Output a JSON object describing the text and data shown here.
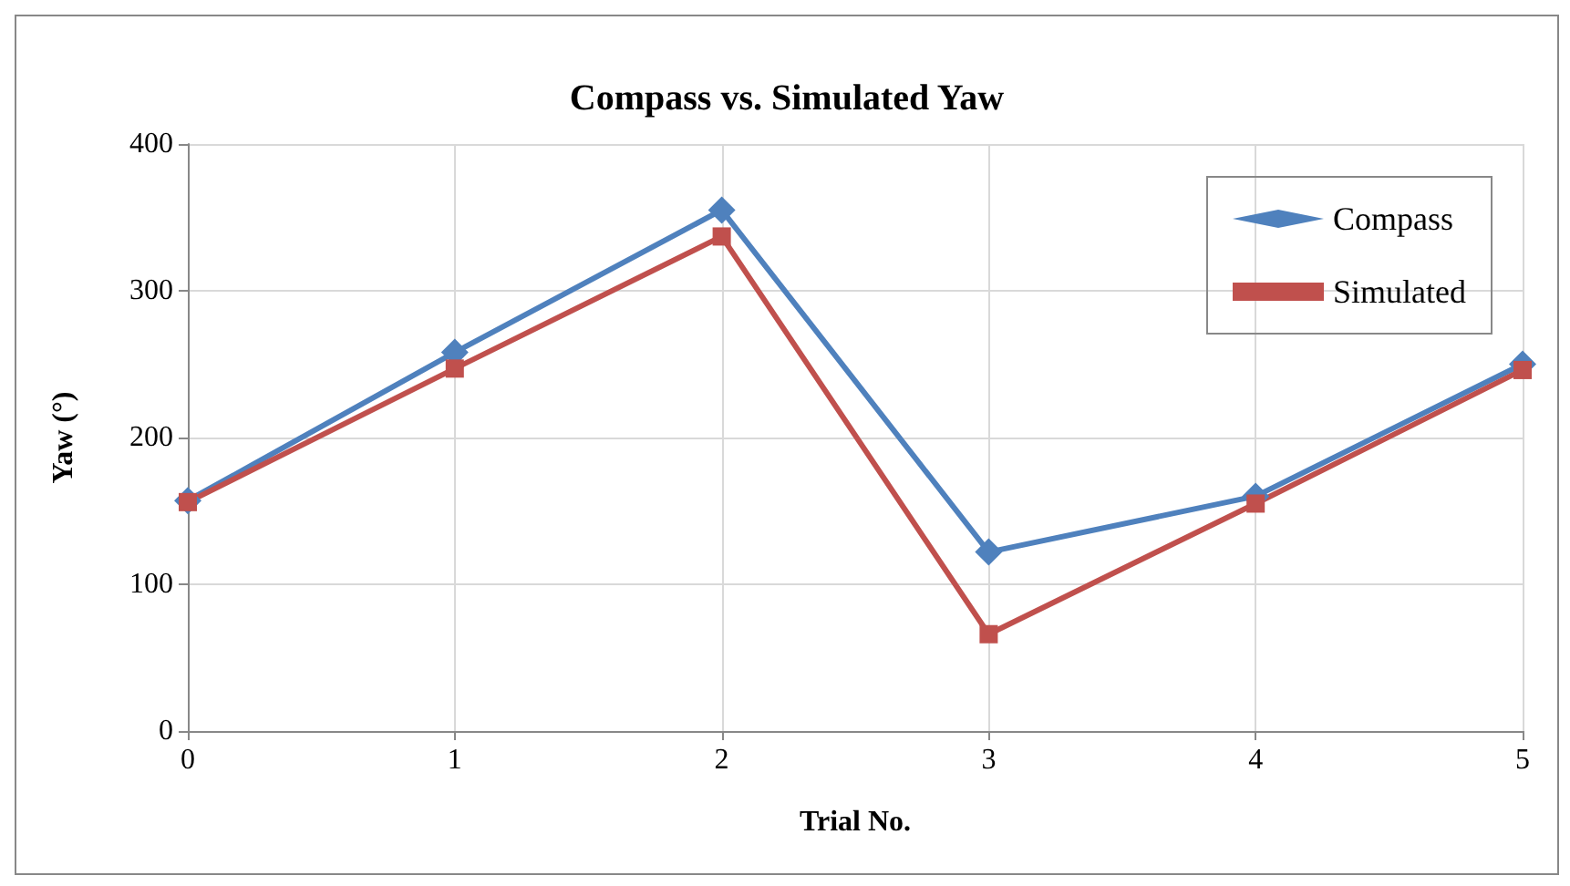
{
  "chart_data": {
    "type": "line",
    "title": "Compass vs. Simulated Yaw",
    "xlabel": "Trial No.",
    "ylabel": "Yaw (°)",
    "x": [
      0,
      1,
      2,
      3,
      4,
      5
    ],
    "series": [
      {
        "name": "Compass",
        "color": "#4f81bd",
        "marker": "diamond",
        "values": [
          157,
          258,
          355,
          122,
          160,
          250
        ]
      },
      {
        "name": "Simulated",
        "color": "#c0504d",
        "marker": "square",
        "values": [
          156,
          247,
          337,
          66,
          155,
          246
        ]
      }
    ],
    "xlim": [
      0,
      5
    ],
    "xticks": [
      0,
      1,
      2,
      3,
      4,
      5
    ],
    "ylim": [
      0,
      400
    ],
    "yticks": [
      0,
      100,
      200,
      300,
      400
    ],
    "grid": true,
    "legend": "top right",
    "line_style": "solid"
  }
}
